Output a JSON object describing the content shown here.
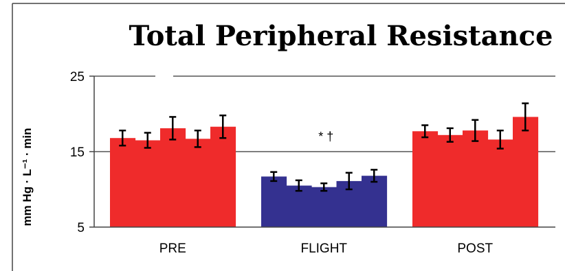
{
  "chart_data": {
    "type": "bar",
    "title": "Total Peripheral Resistance",
    "ylabel": "mm Hg · L⁻¹ · min",
    "xlabel": "",
    "ylim": [
      5,
      25
    ],
    "yticks": [
      5,
      15,
      25
    ],
    "grid": true,
    "groups": [
      {
        "label": "PRE",
        "color": "#ef2b2b",
        "values": [
          16.8,
          16.5,
          18.1,
          16.7,
          18.3
        ],
        "errors": [
          1.0,
          1.0,
          1.5,
          1.1,
          1.5
        ]
      },
      {
        "label": "FLIGHT",
        "color": "#343190",
        "values": [
          11.7,
          10.5,
          10.3,
          11.1,
          11.8
        ],
        "errors": [
          0.6,
          0.7,
          0.5,
          1.1,
          0.8
        ]
      },
      {
        "label": "POST",
        "color": "#ef2b2b",
        "values": [
          17.7,
          17.2,
          17.8,
          16.6,
          19.6
        ],
        "errors": [
          0.8,
          0.9,
          1.4,
          1.2,
          1.8
        ]
      }
    ],
    "annotations": [
      {
        "text": "* †",
        "group": "FLIGHT"
      }
    ]
  }
}
